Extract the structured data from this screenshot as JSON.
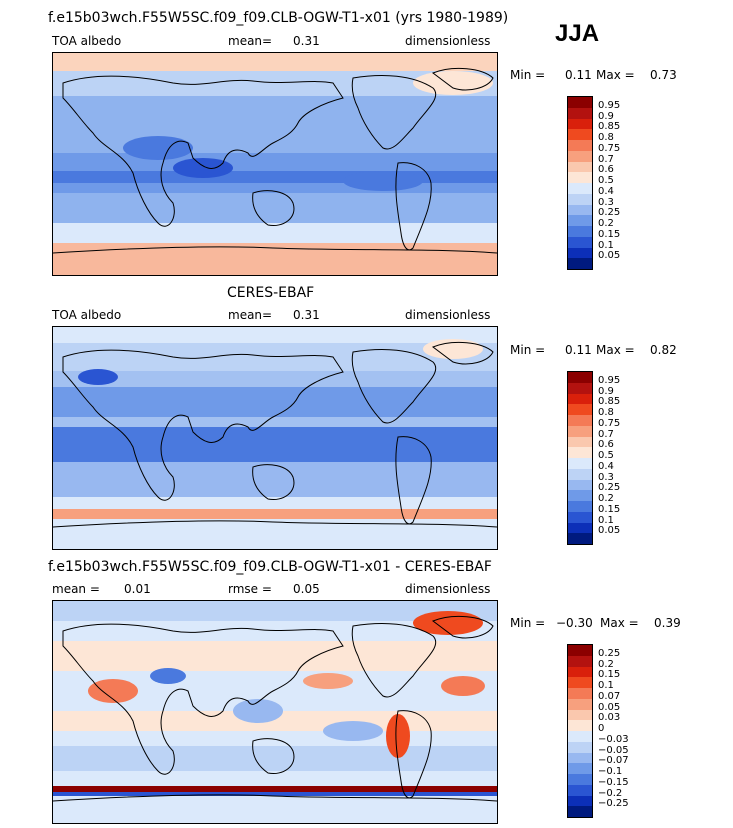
{
  "season": "JJA",
  "panels": [
    {
      "title": "f.e15b03wch.F55W5SC.f09_f09.CLB-OGW-T1-x01 (yrs 1980-1989)",
      "left_label": "TOA albedo",
      "center_label": "mean=",
      "center_value": "0.31",
      "right_label": "dimensionless",
      "min_label": "Min =",
      "min_value": "0.11",
      "max_label": "Max =",
      "max_value": "0.73",
      "levels": [
        "0.95",
        "0.9",
        "0.85",
        "0.8",
        "0.75",
        "0.7",
        "0.6",
        "0.5",
        "0.4",
        "0.3",
        "0.25",
        "0.2",
        "0.15",
        "0.1",
        "0.05"
      ],
      "colors": [
        "#8b0000",
        "#b3120f",
        "#d9200b",
        "#ef4a1f",
        "#f47a56",
        "#f7a07e",
        "#fac8ae",
        "#fde6d6",
        "#dbe9fb",
        "#bdd3f5",
        "#98b8f0",
        "#6f9ae8",
        "#4a79de",
        "#2a55d2",
        "#0c2fb8",
        "#001a7f"
      ]
    },
    {
      "title": "CERES-EBAF",
      "left_label": "TOA albedo",
      "center_label": "mean=",
      "center_value": "0.31",
      "right_label": "dimensionless",
      "min_label": "Min =",
      "min_value": "0.11",
      "max_label": "Max =",
      "max_value": "0.82",
      "levels": [
        "0.95",
        "0.9",
        "0.85",
        "0.8",
        "0.75",
        "0.7",
        "0.6",
        "0.5",
        "0.4",
        "0.3",
        "0.25",
        "0.2",
        "0.15",
        "0.1",
        "0.05"
      ],
      "colors": [
        "#8b0000",
        "#b3120f",
        "#d9200b",
        "#ef4a1f",
        "#f47a56",
        "#f7a07e",
        "#fac8ae",
        "#fde6d6",
        "#dbe9fb",
        "#bdd3f5",
        "#98b8f0",
        "#6f9ae8",
        "#4a79de",
        "#2a55d2",
        "#0c2fb8",
        "#001a7f"
      ]
    },
    {
      "title": "f.e15b03wch.F55W5SC.f09_f09.CLB-OGW-T1-x01 - CERES-EBAF",
      "left_label": "mean =",
      "left_value": "0.01",
      "center_label": "rmse =",
      "center_value": "0.05",
      "right_label": "dimensionless",
      "min_label": "Min =",
      "min_value": "−0.30",
      "max_label": "Max =",
      "max_value": "0.39",
      "levels": [
        "0.25",
        "0.2",
        "0.15",
        "0.1",
        "0.07",
        "0.05",
        "0.03",
        "0",
        "−0.03",
        "−0.05",
        "−0.07",
        "−0.1",
        "−0.15",
        "−0.2",
        "−0.25"
      ],
      "colors": [
        "#8b0000",
        "#b3120f",
        "#d9200b",
        "#ef4a1f",
        "#f47a56",
        "#f7a07e",
        "#fac8ae",
        "#fde6d6",
        "#dbe9fb",
        "#bdd3f5",
        "#98b8f0",
        "#6f9ae8",
        "#4a79de",
        "#2a55d2",
        "#0c2fb8",
        "#001a7f"
      ]
    }
  ]
}
